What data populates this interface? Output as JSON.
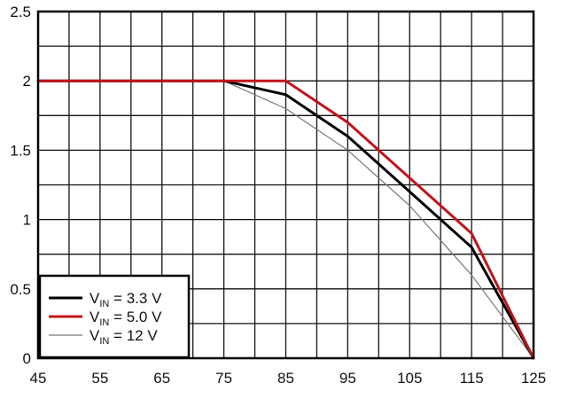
{
  "chart_data": {
    "type": "line",
    "title": "",
    "xlabel": "",
    "ylabel": "",
    "xlim": [
      45,
      125
    ],
    "ylim": [
      0,
      2.5
    ],
    "x_ticks": [
      45,
      55,
      65,
      75,
      85,
      95,
      105,
      115,
      125
    ],
    "x_tick_labels": [
      "45",
      "55",
      "65",
      "75",
      "85",
      "95",
      "105",
      "115",
      "125"
    ],
    "y_ticks": [
      0,
      0.5,
      1,
      1.5,
      2,
      2.5
    ],
    "y_tick_labels": [
      "0",
      "0.5",
      "1",
      "1.5",
      "2",
      "2.5"
    ],
    "x_grid_step": 5,
    "y_grid_step": 0.25,
    "grid": true,
    "legend_position": "bottom-left",
    "series": [
      {
        "name": "V_IN = 3.3 V",
        "label_main": "V",
        "label_sub": "IN",
        "label_rest": " = 3.3 V",
        "color": "#000000",
        "stroke_weight": "bold",
        "x": [
          45,
          75,
          85,
          95,
          105,
          115,
          125
        ],
        "y": [
          2.0,
          2.0,
          1.9,
          1.6,
          1.2,
          0.8,
          0.0
        ]
      },
      {
        "name": "V_IN = 5.0 V",
        "label_main": "V",
        "label_sub": "IN",
        "label_rest": " = 5.0 V",
        "color": "#c0141c",
        "stroke_weight": "bold",
        "x": [
          45,
          75,
          85,
          95,
          105,
          115,
          125
        ],
        "y": [
          2.0,
          2.0,
          2.0,
          1.7,
          1.3,
          0.9,
          0.0
        ]
      },
      {
        "name": "V_IN = 12 V",
        "label_main": "V",
        "label_sub": "IN",
        "label_rest": " = 12 V",
        "color": "#777777",
        "stroke_weight": "thin",
        "x": [
          45,
          75,
          85,
          95,
          105,
          115,
          125
        ],
        "y": [
          2.0,
          2.0,
          1.8,
          1.5,
          1.1,
          0.6,
          0.0
        ]
      }
    ]
  }
}
